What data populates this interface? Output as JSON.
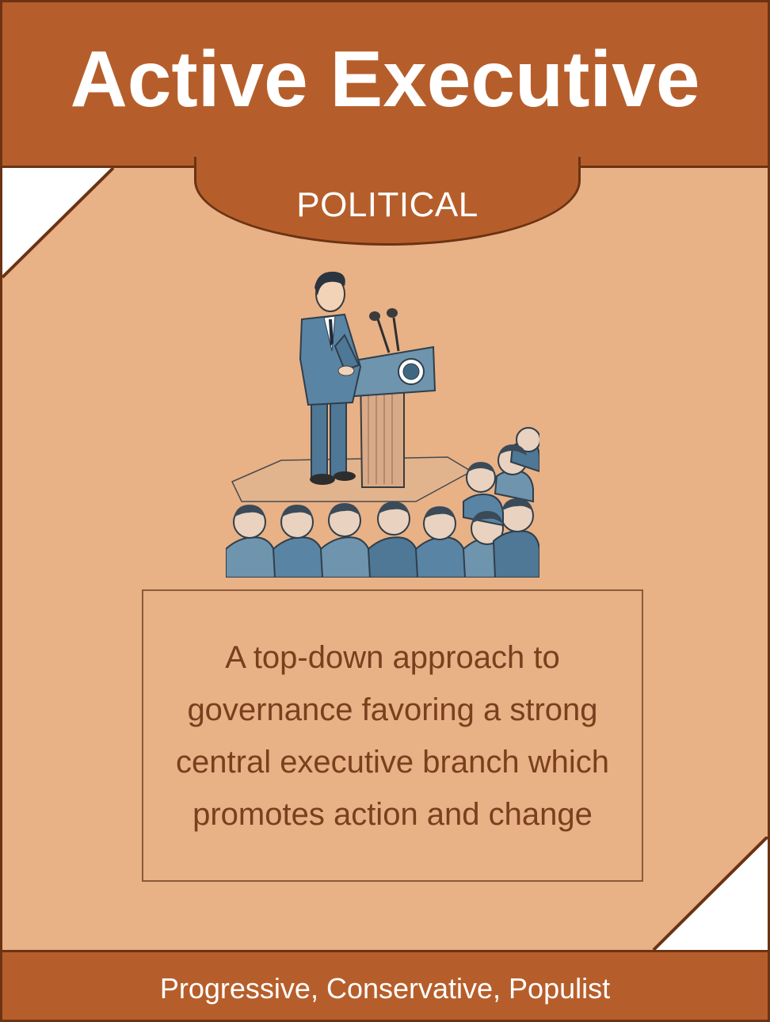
{
  "card": {
    "title": "Active Executive",
    "category": "POLITICAL",
    "description": "A top-down approach to governance favoring a strong central executive branch which promotes action and change",
    "tags": "Progressive, Conservative, Populist"
  },
  "illustration": {
    "icon": "speaker-at-podium-illustration"
  },
  "colors": {
    "band": "#b65e2b",
    "card_background": "#e8b186",
    "border": "#6b3313",
    "description_text": "#79401e",
    "title_text": "#ffffff"
  }
}
